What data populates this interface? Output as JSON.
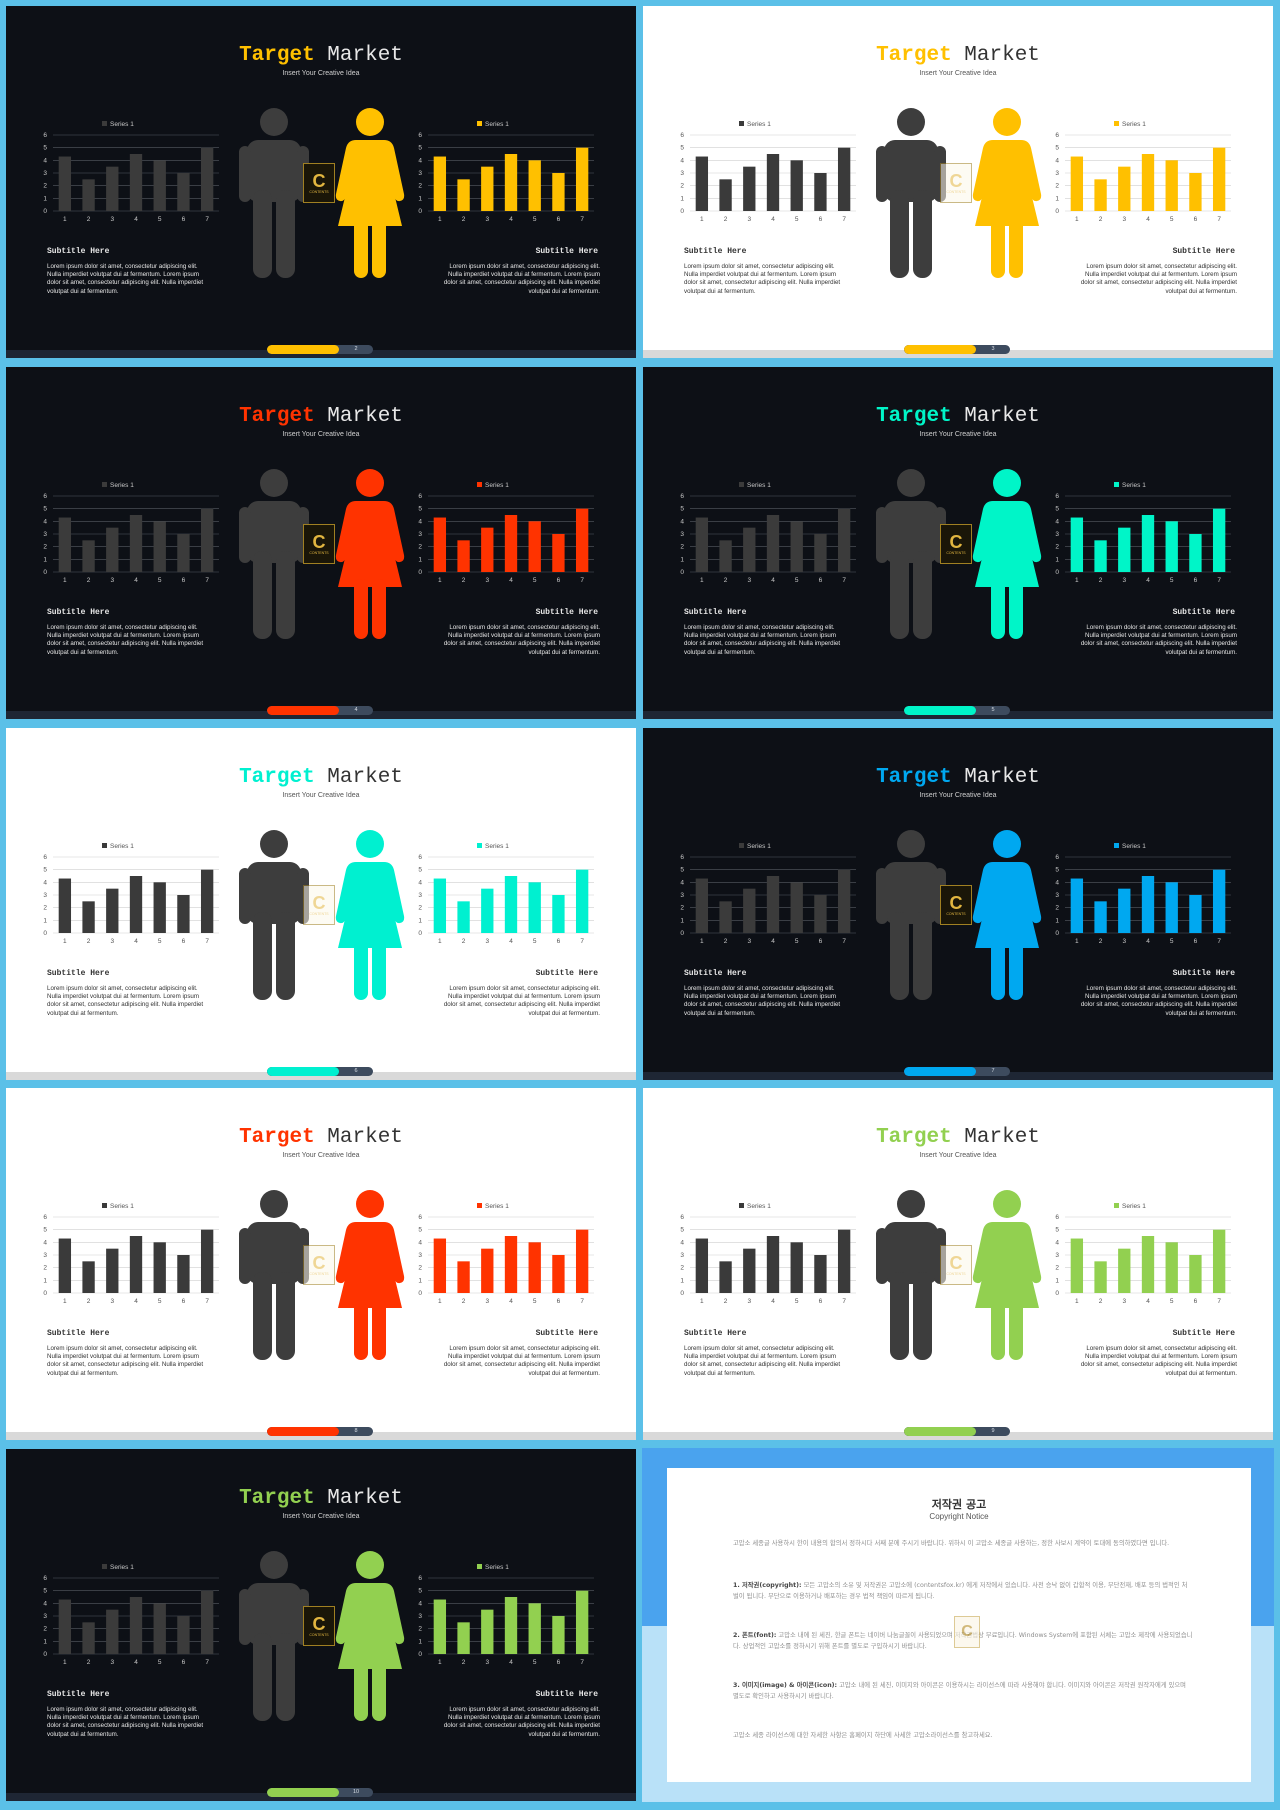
{
  "common": {
    "title_word1": "Target",
    "title_word2": "Market",
    "subtitle_idea": "Insert Your Creative Idea",
    "legend_label": "Series 1",
    "section_subtitle": "Subtitle Here",
    "body_text": "Lorem ipsum dolor sit amet, consectetur adipiscing elit. Nulla imperdiet volutpat dui at fermentum. Lorem ipsum dolor sit amet, consectetur adipiscing elit. Nulla imperdiet volutpat dui at fermentum.",
    "logo_letter": "C",
    "logo_text": "CONTENTS"
  },
  "chart_data": [
    {
      "type": "bar",
      "categories": [
        "1",
        "2",
        "3",
        "4",
        "5",
        "6",
        "7"
      ],
      "series": [
        {
          "name": "Series 1",
          "values": [
            4.3,
            2.5,
            3.5,
            4.5,
            4.0,
            3.0,
            5.0
          ]
        }
      ],
      "ylim": [
        0,
        6
      ],
      "yticks": [
        "0",
        "1",
        "2",
        "3",
        "4",
        "5",
        "6"
      ],
      "legend": "top",
      "grid": true
    }
  ],
  "colors": {
    "male_figure": "#3d3d3d",
    "chart_gray": "#3a3a3a"
  },
  "slides": [
    {
      "theme": "dark",
      "accent": "#ffc000",
      "page": "2"
    },
    {
      "theme": "light",
      "accent": "#ffc000",
      "page": "3"
    },
    {
      "theme": "dark",
      "accent": "#ff3300",
      "page": "4"
    },
    {
      "theme": "dark",
      "accent": "#00f5c8",
      "page": "5"
    },
    {
      "theme": "light",
      "accent": "#00f0d0",
      "page": "6"
    },
    {
      "theme": "dark",
      "accent": "#00a8f0",
      "page": "7"
    },
    {
      "theme": "light",
      "accent": "#ff3300",
      "page": "8"
    },
    {
      "theme": "light",
      "accent": "#92d050",
      "page": "9"
    },
    {
      "theme": "dark",
      "accent": "#92d050",
      "page": "10"
    }
  ],
  "copyright": {
    "title": "저작권 공고",
    "subtitle": "Copyright Notice",
    "intro": "고맙소 세종글 사용하시 한이 내용의 합의서 정하시다 서째 분에 주시기 바랍니다. 위하시 이 고맙소 세종글 사용하는, 정한 사보시 계약이 토대에 동의하였다면 입니다.",
    "item1_head": "1. 저작권(copyright):",
    "item1_text": "모든 고맙소의 소유 및 저작권은 고맙소에 (contentsfox.kr) 에게 저작에서 있습니다. 사전 승낙 없이 갑합적 이용, 무단전재, 배포 등의 법적인 처벌이 됩니다. 무단으로 이용하거나 배포하는 경우 법적 책임이 따르게 됩니다.",
    "item2_head": "2. 폰트(font):",
    "item2_text": "고맙소 내에 된 세진, 한글 폰트는 네이버 나눔글꼴이 사용되었으며 저작권법상 무료입니다. Windows System에 포함된 서체는 고맙소 제작에 사용되었습니다. 상업적인 고맙소를 정하시기 위해 폰트를 별도로 구입하시기 바랍니다.",
    "item3_head": "3. 이미지(image) & 아이콘(icon):",
    "item3_text": "고맙소 내에 된 세진, 이미지와 아이콘은 이용하시는 라이선스에 따라 사용해야 합니다. 이미지와 아이콘은 저작권 원작자에게 있으며 별도로 확인하고 사용하시기 바랍니다.",
    "outro": "고맙소 세종 라이선스에 대한 자세한 사항은 홈페이지 하단에 사세한 고맙소라이선스를 참고하세요."
  }
}
